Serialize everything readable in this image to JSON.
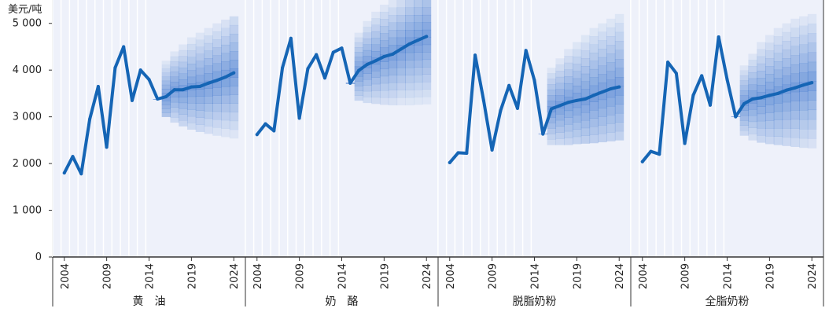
{
  "chart_data": {
    "type": "line",
    "y_unit_label": "美元/吨",
    "ylim": [
      0,
      5500
    ],
    "y_ticks": [
      0,
      1000,
      2000,
      3000,
      4000,
      5000
    ],
    "y_tick_labels": [
      "0",
      "1 000",
      "2 000",
      "3 000",
      "4 000",
      "5 000"
    ],
    "x_range": [
      2003,
      2025
    ],
    "x_ticks": [
      2004,
      2009,
      2014,
      2019,
      2024
    ],
    "forecast_start": 2015,
    "colors": {
      "line": "#1565b5",
      "fan": "#2a68c8",
      "panel_bg": "#eef1fa",
      "grid": "#ffffff",
      "axis": "#333333"
    },
    "panels": [
      {
        "label": "黄　油",
        "x": [
          2004,
          2005,
          2006,
          2007,
          2008,
          2009,
          2010,
          2011,
          2012,
          2013,
          2014,
          2015,
          2016,
          2017,
          2018,
          2019,
          2020,
          2021,
          2022,
          2023,
          2024
        ],
        "y": [
          1800,
          2150,
          1780,
          2950,
          3650,
          2350,
          4050,
          4500,
          3350,
          4000,
          3800,
          3380,
          3430,
          3580,
          3580,
          3640,
          3650,
          3720,
          3780,
          3850,
          3940
        ],
        "fan_lower": [
          3380,
          3000,
          2880,
          2800,
          2730,
          2680,
          2640,
          2600,
          2570,
          2540
        ],
        "fan_upper": [
          3380,
          4200,
          4400,
          4550,
          4700,
          4800,
          4900,
          5000,
          5080,
          5150
        ]
      },
      {
        "label": "奶　酪",
        "x": [
          2004,
          2005,
          2006,
          2007,
          2008,
          2009,
          2010,
          2011,
          2012,
          2013,
          2014,
          2015,
          2016,
          2017,
          2018,
          2019,
          2020,
          2021,
          2022,
          2023,
          2024
        ],
        "y": [
          2620,
          2850,
          2700,
          4050,
          4680,
          2970,
          4030,
          4330,
          3830,
          4380,
          4470,
          3720,
          3990,
          4120,
          4200,
          4290,
          4340,
          4450,
          4560,
          4640,
          4720
        ],
        "fan_lower": [
          3720,
          3350,
          3300,
          3280,
          3260,
          3250,
          3250,
          3250,
          3260,
          3270
        ],
        "fan_upper": [
          3720,
          4800,
          5050,
          5250,
          5400,
          5500,
          5500,
          5500,
          5500,
          5500
        ]
      },
      {
        "label": "脱脂奶粉",
        "x": [
          2004,
          2005,
          2006,
          2007,
          2008,
          2009,
          2010,
          2011,
          2012,
          2013,
          2014,
          2015,
          2016,
          2017,
          2018,
          2019,
          2020,
          2021,
          2022,
          2023,
          2024
        ],
        "y": [
          2020,
          2230,
          2220,
          4320,
          3350,
          2290,
          3130,
          3670,
          3180,
          4420,
          3780,
          2630,
          3170,
          3240,
          3310,
          3350,
          3380,
          3460,
          3530,
          3600,
          3640
        ],
        "fan_lower": [
          2630,
          2400,
          2400,
          2400,
          2420,
          2430,
          2440,
          2460,
          2480,
          2500
        ],
        "fan_upper": [
          2630,
          4050,
          4250,
          4450,
          4600,
          4750,
          4900,
          5000,
          5100,
          5200
        ]
      },
      {
        "label": "全脂奶粉",
        "x": [
          2004,
          2005,
          2006,
          2007,
          2008,
          2009,
          2010,
          2011,
          2012,
          2013,
          2014,
          2015,
          2016,
          2017,
          2018,
          2019,
          2020,
          2021,
          2022,
          2023,
          2024
        ],
        "y": [
          2040,
          2260,
          2200,
          4170,
          3930,
          2430,
          3460,
          3880,
          3250,
          4710,
          3800,
          3000,
          3280,
          3380,
          3410,
          3460,
          3500,
          3570,
          3620,
          3680,
          3730
        ],
        "fan_lower": [
          3000,
          2600,
          2500,
          2450,
          2420,
          2400,
          2380,
          2360,
          2340,
          2330
        ],
        "fan_upper": [
          3000,
          4100,
          4350,
          4600,
          4750,
          4900,
          5000,
          5100,
          5150,
          5200
        ]
      }
    ]
  }
}
